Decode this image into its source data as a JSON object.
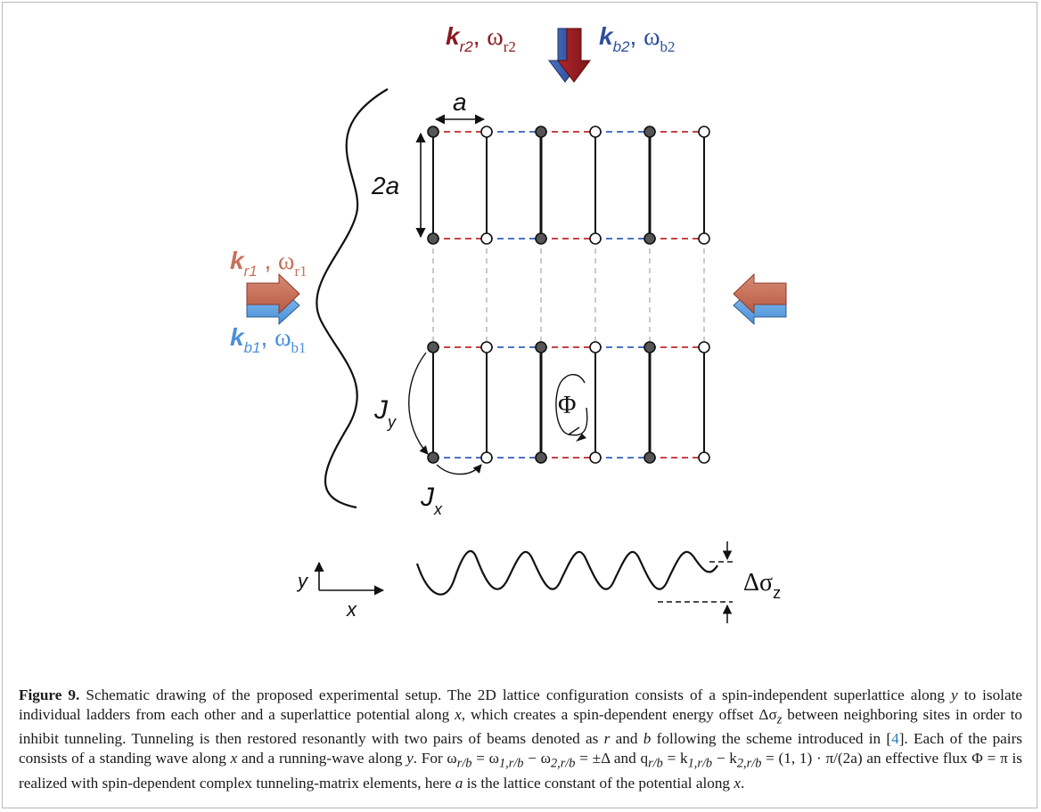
{
  "diagram": {
    "beam_r2": {
      "k_base": "k",
      "k_sub": "r2",
      "omega_base": "ω",
      "omega_sub": "r2",
      "color": "#8b1a1f"
    },
    "beam_b2": {
      "k_base": "k",
      "k_sub": "b2",
      "omega_base": "ω",
      "omega_sub": "b2",
      "color": "#2d4f9e"
    },
    "beam_r1": {
      "k_base": "k",
      "k_sub": "r1",
      "omega_base": "ω",
      "omega_sub": "r1",
      "color": "#c8705a"
    },
    "beam_b1": {
      "k_base": "k",
      "k_sub": "b1",
      "omega_base": "ω",
      "omega_sub": "b1",
      "color": "#4a90d9"
    },
    "label_a": "a",
    "label_2a": "2a",
    "label_Jy_base": "J",
    "label_Jy_sub": "y",
    "label_Jx_base": "J",
    "label_Jx_sub": "x",
    "label_Phi": "Φ",
    "label_delta_base": "Δσ",
    "label_delta_sub": "z",
    "axis_y": "y",
    "axis_x": "x"
  },
  "caption": {
    "label": "Figure 9.",
    "text_1": " Schematic drawing of the proposed experimental setup. The 2D lattice configuration consists of a spin-independent superlattice along ",
    "var_y1": "y",
    "text_2": " to isolate individual ladders from each other and a superlattice potential along ",
    "var_x1": "x",
    "text_3": ", which creates a spin-dependent energy offset Δσ",
    "sub_z": "z",
    "text_4": " between neighboring sites in order to inhibit tunneling. Tunneling is then restored resonantly with two pairs of beams denoted as ",
    "var_r": "r",
    "text_5": " and ",
    "var_b": "b",
    "text_6": " following the scheme introduced in [",
    "ref": "4",
    "text_7": "]. Each of the pairs consists of a standing wave along ",
    "var_x2": "x",
    "text_8": " and a running-wave along ",
    "var_y2": "y",
    "text_9": ". For ω",
    "sub_rb1": "r/b",
    "text_10": " = ω",
    "sub_1rb": "1,r/b",
    "text_11": " − ω",
    "sub_2rb": "2,r/b",
    "text_12": " = ±Δ and q",
    "sub_rb2": "r/b",
    "text_13": " = k",
    "sub_1rb2": "1,r/b",
    "text_14": " − k",
    "sub_2rb2": "2,r/b",
    "text_15": " = (1, 1) · π/(2a) an effective flux Φ = π is realized with spin-dependent complex tunneling-matrix elements, here ",
    "var_a": "a",
    "text_16": " is the lattice constant of the potential along ",
    "var_x3": "x",
    "text_17": "."
  }
}
